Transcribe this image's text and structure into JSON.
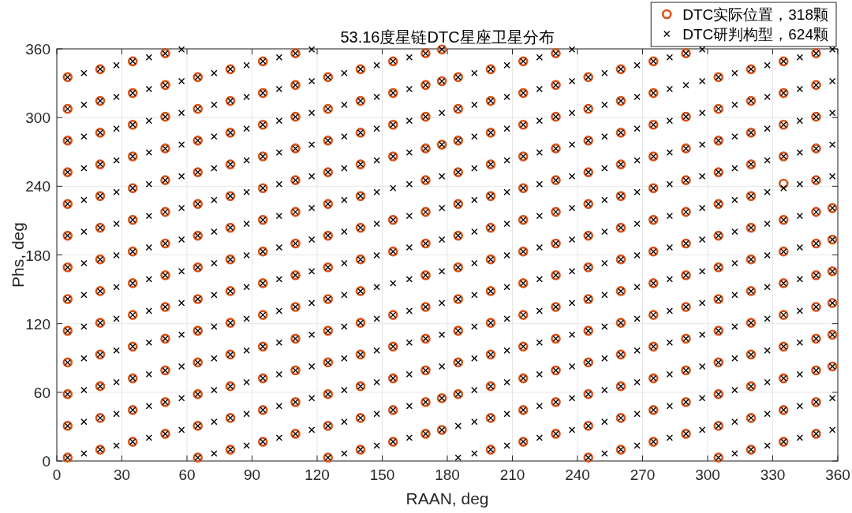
{
  "chart_data": {
    "type": "scatter",
    "title": "53.16度星链DTC星座卫星分布",
    "xlabel": "RAAN, deg",
    "ylabel": "Phs, deg",
    "xlim": [
      0,
      360
    ],
    "xticks": [
      0,
      30,
      60,
      90,
      120,
      150,
      180,
      210,
      240,
      270,
      300,
      330,
      360
    ],
    "ylim": [
      0,
      360
    ],
    "yticks": [
      0,
      60,
      120,
      180,
      240,
      300,
      360
    ],
    "grid": true,
    "legend": "top right",
    "series": [
      {
        "name": "DTC实际位置，318颗",
        "color": "#d95319",
        "marker": "circle",
        "x": [
          5,
          5,
          5,
          5,
          5,
          5,
          5,
          5,
          5,
          5,
          5,
          5,
          5,
          20,
          20,
          20,
          20,
          20,
          20,
          20,
          20,
          20,
          20,
          20,
          20,
          20,
          35,
          35,
          35,
          35,
          35,
          35,
          35,
          35,
          35,
          35,
          35,
          35,
          35,
          50,
          50,
          50,
          50,
          50,
          50,
          50,
          50,
          50,
          50,
          50,
          50,
          50,
          65,
          65,
          65,
          65,
          65,
          65,
          65,
          65,
          65,
          65,
          65,
          65,
          65,
          80,
          80,
          80,
          80,
          80,
          80,
          80,
          80,
          80,
          80,
          80,
          80,
          80,
          95,
          95,
          95,
          95,
          95,
          95,
          95,
          95,
          95,
          95,
          95,
          95,
          95,
          110,
          110,
          110,
          110,
          110,
          110,
          110,
          110,
          110,
          110,
          110,
          110,
          110,
          125,
          125,
          125,
          125,
          125,
          125,
          125,
          125,
          125,
          125,
          125,
          125,
          125,
          140,
          140,
          140,
          140,
          140,
          140,
          140,
          140,
          140,
          140,
          140,
          140,
          140,
          155,
          155,
          155,
          155,
          155,
          155,
          155,
          155,
          155,
          155,
          155,
          170,
          170,
          170,
          170,
          170,
          170,
          170,
          170,
          170,
          170,
          170,
          170,
          170,
          177.5,
          177.5,
          177.5,
          177.5,
          177.5,
          185,
          185,
          185,
          185,
          185,
          185,
          185,
          185,
          185,
          185,
          185,
          200,
          200,
          200,
          200,
          200,
          200,
          200,
          200,
          200,
          200,
          200,
          200,
          200,
          215,
          215,
          215,
          215,
          215,
          215,
          215,
          215,
          215,
          215,
          215,
          215,
          215,
          230,
          230,
          230,
          230,
          230,
          230,
          230,
          230,
          230,
          230,
          230,
          230,
          230,
          245,
          245,
          245,
          245,
          245,
          245,
          245,
          245,
          245,
          245,
          245,
          245,
          245,
          260,
          260,
          260,
          260,
          260,
          260,
          260,
          260,
          260,
          260,
          260,
          260,
          260,
          275,
          275,
          275,
          275,
          275,
          275,
          275,
          275,
          275,
          275,
          275,
          275,
          275,
          290,
          290,
          290,
          290,
          290,
          290,
          290,
          290,
          290,
          290,
          290,
          290,
          305,
          305,
          305,
          305,
          305,
          305,
          305,
          305,
          305,
          305,
          305,
          305,
          305,
          320,
          320,
          320,
          320,
          320,
          320,
          320,
          320,
          320,
          320,
          320,
          320,
          320,
          335,
          335,
          335,
          335,
          335,
          335,
          335,
          335,
          335,
          335,
          335,
          335,
          335,
          350,
          350,
          350,
          350,
          350,
          350,
          350,
          350,
          350,
          350,
          350,
          350,
          350,
          357.5,
          357.5,
          357.5,
          357.5,
          357.5,
          357.5
        ],
        "values": [
          3,
          30.7,
          58.4,
          86.1,
          113.8,
          141.5,
          169.2,
          196.8,
          224.5,
          252.2,
          279.9,
          307.6,
          335.3,
          9.9,
          37.6,
          65.3,
          93.0,
          120.7,
          148.4,
          176.1,
          203.7,
          231.4,
          259.1,
          286.8,
          314.5,
          342.2,
          16.8,
          44.5,
          72.2,
          99.9,
          127.6,
          155.3,
          183.0,
          210.6,
          238.3,
          266.0,
          293.7,
          321.4,
          349.1,
          23.8,
          51.5,
          79.2,
          106.9,
          134.6,
          162.3,
          190.0,
          217.6,
          245.3,
          273.0,
          300.7,
          328.4,
          356.1,
          3,
          30.7,
          58.4,
          86.1,
          113.8,
          141.5,
          169.2,
          196.8,
          224.5,
          252.2,
          279.9,
          307.6,
          335.3,
          9.9,
          37.6,
          65.3,
          93.0,
          120.7,
          148.4,
          176.1,
          203.7,
          231.4,
          259.1,
          286.8,
          314.5,
          342.2,
          16.8,
          44.5,
          72.2,
          99.9,
          127.6,
          155.3,
          183.0,
          210.6,
          238.3,
          266.0,
          293.7,
          321.4,
          349.1,
          23.8,
          51.5,
          79.2,
          106.9,
          134.6,
          162.3,
          190.0,
          217.6,
          245.3,
          273.0,
          300.7,
          328.4,
          356.1,
          3,
          30.7,
          58.4,
          86.1,
          113.8,
          141.5,
          169.2,
          196.8,
          224.5,
          252.2,
          279.9,
          307.6,
          335.3,
          9.9,
          37.6,
          65.3,
          93.0,
          120.7,
          148.4,
          176.1,
          203.7,
          231.4,
          259.1,
          286.8,
          314.5,
          342.2,
          16.8,
          44.5,
          72.2,
          99.9,
          127.6,
          183.0,
          210.6,
          266.0,
          293.7,
          321.4,
          349.1,
          23.8,
          51.5,
          79.2,
          106.9,
          134.6,
          162.3,
          190.0,
          217.6,
          245.3,
          273.0,
          300.7,
          328.4,
          356.1,
          27.2,
          54.9,
          276.4,
          331.8,
          359.5,
          58.4,
          86.1,
          113.8,
          141.5,
          169.2,
          196.8,
          224.5,
          252.2,
          279.9,
          307.6,
          335.3,
          9.9,
          37.6,
          65.3,
          93.0,
          120.7,
          148.4,
          176.1,
          203.7,
          231.4,
          259.1,
          286.8,
          314.5,
          342.2,
          16.8,
          44.5,
          72.2,
          99.9,
          127.6,
          155.3,
          183.0,
          210.6,
          238.3,
          266.0,
          293.7,
          321.4,
          349.1,
          23.8,
          51.5,
          79.2,
          106.9,
          134.6,
          162.3,
          190.0,
          217.6,
          245.3,
          273.0,
          300.7,
          328.4,
          356.1,
          3,
          30.7,
          58.4,
          86.1,
          113.8,
          141.5,
          169.2,
          196.8,
          224.5,
          252.2,
          279.9,
          307.6,
          335.3,
          9.9,
          37.6,
          65.3,
          93.0,
          120.7,
          148.4,
          176.1,
          203.7,
          231.4,
          259.1,
          286.8,
          314.5,
          342.2,
          16.8,
          44.5,
          72.2,
          99.9,
          127.6,
          155.3,
          183.0,
          210.6,
          238.3,
          266.0,
          293.7,
          321.4,
          349.1,
          23.8,
          51.5,
          79.2,
          106.9,
          134.6,
          162.3,
          190.0,
          217.6,
          245.3,
          273.0,
          300.7,
          356.1,
          3,
          30.7,
          58.4,
          86.1,
          113.8,
          141.5,
          169.2,
          196.8,
          224.5,
          252.2,
          279.9,
          307.6,
          335.3,
          9.9,
          37.6,
          65.3,
          93.0,
          120.7,
          148.4,
          176.1,
          203.7,
          231.4,
          259.1,
          286.8,
          314.5,
          342.2,
          16.8,
          44.5,
          72.2,
          99.9,
          127.6,
          155.3,
          183.0,
          210.6,
          242.3,
          266.0,
          293.7,
          321.4,
          349.1,
          23.8,
          51.5,
          79.2,
          106.9,
          134.6,
          162.3,
          190.0,
          217.6,
          245.3,
          273.0,
          300.7,
          328.4,
          356.1,
          82.6,
          110.3,
          138.0,
          165.7,
          193.4,
          221.0
        ]
      },
      {
        "name": "DTC研判构型，624颗",
        "color": "#000000",
        "marker": "cross",
        "x": [
          5,
          5,
          5,
          5,
          5,
          5,
          5,
          5,
          5,
          5,
          5,
          5,
          5,
          12.5,
          12.5,
          12.5,
          12.5,
          12.5,
          12.5,
          12.5,
          12.5,
          12.5,
          12.5,
          12.5,
          12.5,
          12.5,
          20,
          20,
          20,
          20,
          20,
          20,
          20,
          20,
          20,
          20,
          20,
          20,
          20,
          27.5,
          27.5,
          27.5,
          27.5,
          27.5,
          27.5,
          27.5,
          27.5,
          27.5,
          27.5,
          27.5,
          27.5,
          27.5,
          35,
          35,
          35,
          35,
          35,
          35,
          35,
          35,
          35,
          35,
          35,
          35,
          35,
          42.5,
          42.5,
          42.5,
          42.5,
          42.5,
          42.5,
          42.5,
          42.5,
          42.5,
          42.5,
          42.5,
          42.5,
          42.5,
          50,
          50,
          50,
          50,
          50,
          50,
          50,
          50,
          50,
          50,
          50,
          50,
          50,
          57.5,
          57.5,
          57.5,
          57.5,
          57.5,
          57.5,
          57.5,
          57.5,
          57.5,
          57.5,
          57.5,
          57.5,
          57.5,
          65,
          65,
          65,
          65,
          65,
          65,
          65,
          65,
          65,
          65,
          65,
          65,
          65,
          72.5,
          72.5,
          72.5,
          72.5,
          72.5,
          72.5,
          72.5,
          72.5,
          72.5,
          72.5,
          72.5,
          72.5,
          72.5,
          80,
          80,
          80,
          80,
          80,
          80,
          80,
          80,
          80,
          80,
          80,
          80,
          80,
          87.5,
          87.5,
          87.5,
          87.5,
          87.5,
          87.5,
          87.5,
          87.5,
          87.5,
          87.5,
          87.5,
          87.5,
          87.5,
          95,
          95,
          95,
          95,
          95,
          95,
          95,
          95,
          95,
          95,
          95,
          95,
          95,
          102.5,
          102.5,
          102.5,
          102.5,
          102.5,
          102.5,
          102.5,
          102.5,
          102.5,
          102.5,
          102.5,
          102.5,
          102.5,
          110,
          110,
          110,
          110,
          110,
          110,
          110,
          110,
          110,
          110,
          110,
          110,
          110,
          117.5,
          117.5,
          117.5,
          117.5,
          117.5,
          117.5,
          117.5,
          117.5,
          117.5,
          117.5,
          117.5,
          117.5,
          117.5,
          125,
          125,
          125,
          125,
          125,
          125,
          125,
          125,
          125,
          125,
          125,
          125,
          125,
          132.5,
          132.5,
          132.5,
          132.5,
          132.5,
          132.5,
          132.5,
          132.5,
          132.5,
          132.5,
          132.5,
          132.5,
          132.5,
          140,
          140,
          140,
          140,
          140,
          140,
          140,
          140,
          140,
          140,
          140,
          140,
          140,
          147.5,
          147.5,
          147.5,
          147.5,
          147.5,
          147.5,
          147.5,
          147.5,
          147.5,
          147.5,
          147.5,
          147.5,
          147.5,
          155,
          155,
          155,
          155,
          155,
          155,
          155,
          155,
          155,
          155,
          155,
          155,
          155,
          162.5,
          162.5,
          162.5,
          162.5,
          162.5,
          162.5,
          162.5,
          162.5,
          162.5,
          162.5,
          162.5,
          162.5,
          162.5,
          170,
          170,
          170,
          170,
          170,
          170,
          170,
          170,
          170,
          170,
          170,
          170,
          170,
          177.5,
          177.5,
          177.5,
          177.5,
          177.5,
          177.5,
          177.5,
          177.5,
          177.5,
          177.5,
          177.5,
          177.5,
          177.5,
          185,
          185,
          185,
          185,
          185,
          185,
          185,
          185,
          185,
          185,
          185,
          185,
          185,
          192.5,
          192.5,
          192.5,
          192.5,
          192.5,
          192.5,
          192.5,
          192.5,
          192.5,
          192.5,
          192.5,
          192.5,
          192.5,
          200,
          200,
          200,
          200,
          200,
          200,
          200,
          200,
          200,
          200,
          200,
          200,
          200,
          207.5,
          207.5,
          207.5,
          207.5,
          207.5,
          207.5,
          207.5,
          207.5,
          207.5,
          207.5,
          207.5,
          207.5,
          207.5,
          215,
          215,
          215,
          215,
          215,
          215,
          215,
          215,
          215,
          215,
          215,
          215,
          215,
          222.5,
          222.5,
          222.5,
          222.5,
          222.5,
          222.5,
          222.5,
          222.5,
          222.5,
          222.5,
          222.5,
          222.5,
          222.5,
          230,
          230,
          230,
          230,
          230,
          230,
          230,
          230,
          230,
          230,
          230,
          230,
          230,
          237.5,
          237.5,
          237.5,
          237.5,
          237.5,
          237.5,
          237.5,
          237.5,
          237.5,
          237.5,
          237.5,
          237.5,
          237.5,
          245,
          245,
          245,
          245,
          245,
          245,
          245,
          245,
          245,
          245,
          245,
          245,
          245,
          252.5,
          252.5,
          252.5,
          252.5,
          252.5,
          252.5,
          252.5,
          252.5,
          252.5,
          252.5,
          252.5,
          252.5,
          252.5,
          260,
          260,
          260,
          260,
          260,
          260,
          260,
          260,
          260,
          260,
          260,
          260,
          260,
          267.5,
          267.5,
          267.5,
          267.5,
          267.5,
          267.5,
          267.5,
          267.5,
          267.5,
          267.5,
          267.5,
          267.5,
          267.5,
          275,
          275,
          275,
          275,
          275,
          275,
          275,
          275,
          275,
          275,
          275,
          275,
          275,
          282.5,
          282.5,
          282.5,
          282.5,
          282.5,
          282.5,
          282.5,
          282.5,
          282.5,
          282.5,
          282.5,
          282.5,
          282.5,
          290,
          290,
          290,
          290,
          290,
          290,
          290,
          290,
          290,
          290,
          290,
          290,
          290,
          297.5,
          297.5,
          297.5,
          297.5,
          297.5,
          297.5,
          297.5,
          297.5,
          297.5,
          297.5,
          297.5,
          297.5,
          297.5,
          305,
          305,
          305,
          305,
          305,
          305,
          305,
          305,
          305,
          305,
          305,
          305,
          305,
          312.5,
          312.5,
          312.5,
          312.5,
          312.5,
          312.5,
          312.5,
          312.5,
          312.5,
          312.5,
          312.5,
          312.5,
          312.5,
          320,
          320,
          320,
          320,
          320,
          320,
          320,
          320,
          320,
          320,
          320,
          320,
          320,
          327.5,
          327.5,
          327.5,
          327.5,
          327.5,
          327.5,
          327.5,
          327.5,
          327.5,
          327.5,
          327.5,
          327.5,
          327.5,
          335,
          335,
          335,
          335,
          335,
          335,
          335,
          335,
          335,
          335,
          335,
          335,
          335,
          342.5,
          342.5,
          342.5,
          342.5,
          342.5,
          342.5,
          342.5,
          342.5,
          342.5,
          342.5,
          342.5,
          342.5,
          342.5,
          350,
          350,
          350,
          350,
          350,
          350,
          350,
          350,
          350,
          350,
          350,
          350,
          350,
          357.5,
          357.5,
          357.5,
          357.5,
          357.5,
          357.5,
          357.5,
          357.5,
          357.5,
          357.5,
          357.5,
          357.5,
          357.5
        ],
        "values": [
          3,
          30.7,
          58.4,
          86.1,
          113.8,
          141.5,
          169.2,
          196.8,
          224.5,
          252.2,
          279.9,
          307.6,
          335.3,
          6.5,
          34.2,
          61.9,
          89.6,
          117.3,
          145.0,
          172.7,
          200.3,
          228.0,
          255.7,
          283.4,
          311.1,
          338.8,
          9.9,
          37.6,
          65.3,
          93.0,
          120.7,
          148.4,
          176.1,
          203.7,
          231.4,
          259.1,
          286.8,
          314.5,
          342.2,
          13.4,
          41.1,
          68.8,
          96.5,
          124.2,
          151.9,
          179.6,
          207.2,
          234.9,
          262.6,
          290.3,
          318.0,
          345.7,
          16.8,
          44.5,
          72.2,
          99.9,
          127.6,
          155.3,
          183.0,
          210.6,
          238.3,
          266.0,
          293.7,
          321.4,
          349.1,
          20.3,
          48.0,
          75.7,
          103.4,
          131.1,
          158.8,
          186.5,
          214.1,
          241.8,
          269.5,
          297.2,
          324.9,
          352.6,
          23.8,
          51.5,
          79.2,
          106.9,
          134.6,
          162.3,
          190.0,
          217.6,
          245.3,
          273.0,
          300.7,
          328.4,
          356.1,
          27.2,
          54.9,
          82.6,
          110.3,
          138.0,
          165.7,
          193.4,
          221.0,
          248.7,
          276.4,
          304.1,
          331.8,
          359.5,
          3,
          30.7,
          58.4,
          86.1,
          113.8,
          141.5,
          169.2,
          196.8,
          224.5,
          252.2,
          279.9,
          307.6,
          335.3,
          6.5,
          34.2,
          61.9,
          89.6,
          117.3,
          145.0,
          172.7,
          200.3,
          228.0,
          255.7,
          283.4,
          311.1,
          338.8,
          9.9,
          37.6,
          65.3,
          93.0,
          120.7,
          148.4,
          176.1,
          203.7,
          231.4,
          259.1,
          286.8,
          314.5,
          342.2,
          13.4,
          41.1,
          68.8,
          96.5,
          124.2,
          151.9,
          179.6,
          207.2,
          234.9,
          262.6,
          290.3,
          318.0,
          345.7,
          16.8,
          44.5,
          72.2,
          99.9,
          127.6,
          155.3,
          183.0,
          210.6,
          238.3,
          266.0,
          293.7,
          321.4,
          349.1,
          20.3,
          48.0,
          75.7,
          103.4,
          131.1,
          158.8,
          186.5,
          214.1,
          241.8,
          269.5,
          297.2,
          324.9,
          352.6,
          23.8,
          51.5,
          79.2,
          106.9,
          134.6,
          162.3,
          190.0,
          217.6,
          245.3,
          273.0,
          300.7,
          328.4,
          356.1,
          27.2,
          54.9,
          82.6,
          110.3,
          138.0,
          165.7,
          193.4,
          221.0,
          248.7,
          276.4,
          304.1,
          331.8,
          359.5,
          3,
          30.7,
          58.4,
          86.1,
          113.8,
          141.5,
          169.2,
          196.8,
          224.5,
          252.2,
          279.9,
          307.6,
          335.3,
          6.5,
          34.2,
          61.9,
          89.6,
          117.3,
          145.0,
          172.7,
          200.3,
          228.0,
          255.7,
          283.4,
          311.1,
          338.8,
          9.9,
          37.6,
          65.3,
          93.0,
          120.7,
          148.4,
          176.1,
          203.7,
          231.4,
          259.1,
          286.8,
          314.5,
          342.2,
          13.4,
          41.1,
          68.8,
          96.5,
          124.2,
          151.9,
          179.6,
          207.2,
          234.9,
          262.6,
          290.3,
          318.0,
          345.7,
          16.8,
          44.5,
          72.2,
          99.9,
          127.6,
          155.3,
          183.0,
          210.6,
          238.3,
          266.0,
          293.7,
          321.4,
          349.1,
          20.3,
          48.0,
          75.7,
          103.4,
          131.1,
          158.8,
          186.5,
          214.1,
          241.8,
          269.5,
          297.2,
          324.9,
          352.6,
          23.8,
          51.5,
          79.2,
          106.9,
          134.6,
          162.3,
          190.0,
          217.6,
          245.3,
          273.0,
          300.7,
          328.4,
          356.1,
          27.2,
          54.9,
          82.6,
          110.3,
          138.0,
          165.7,
          193.4,
          221.0,
          248.7,
          276.4,
          304.1,
          331.8,
          359.5,
          3,
          30.7,
          58.4,
          86.1,
          113.8,
          141.5,
          169.2,
          196.8,
          224.5,
          252.2,
          279.9,
          307.6,
          335.3,
          6.5,
          34.2,
          61.9,
          89.6,
          117.3,
          145.0,
          172.7,
          200.3,
          228.0,
          255.7,
          283.4,
          311.1,
          338.8,
          9.9,
          37.6,
          65.3,
          93.0,
          120.7,
          148.4,
          176.1,
          203.7,
          231.4,
          259.1,
          286.8,
          314.5,
          342.2,
          13.4,
          41.1,
          68.8,
          96.5,
          124.2,
          151.9,
          179.6,
          207.2,
          234.9,
          262.6,
          290.3,
          318.0,
          345.7,
          16.8,
          44.5,
          72.2,
          99.9,
          127.6,
          155.3,
          183.0,
          210.6,
          238.3,
          266.0,
          293.7,
          321.4,
          349.1,
          20.3,
          48.0,
          75.7,
          103.4,
          131.1,
          158.8,
          186.5,
          214.1,
          241.8,
          269.5,
          297.2,
          324.9,
          352.6,
          23.8,
          51.5,
          79.2,
          106.9,
          134.6,
          162.3,
          190.0,
          217.6,
          245.3,
          273.0,
          300.7,
          328.4,
          356.1,
          27.2,
          54.9,
          82.6,
          110.3,
          138.0,
          165.7,
          193.4,
          221.0,
          248.7,
          276.4,
          304.1,
          331.8,
          359.5,
          3,
          30.7,
          58.4,
          86.1,
          113.8,
          141.5,
          169.2,
          196.8,
          224.5,
          252.2,
          279.9,
          307.6,
          335.3,
          6.5,
          34.2,
          61.9,
          89.6,
          117.3,
          145.0,
          172.7,
          200.3,
          228.0,
          255.7,
          283.4,
          311.1,
          338.8,
          9.9,
          37.6,
          65.3,
          93.0,
          120.7,
          148.4,
          176.1,
          203.7,
          231.4,
          259.1,
          286.8,
          314.5,
          342.2,
          13.4,
          41.1,
          68.8,
          96.5,
          124.2,
          151.9,
          179.6,
          207.2,
          234.9,
          262.6,
          290.3,
          318.0,
          345.7,
          16.8,
          44.5,
          72.2,
          99.9,
          127.6,
          155.3,
          183.0,
          210.6,
          238.3,
          266.0,
          293.7,
          321.4,
          349.1,
          20.3,
          48.0,
          75.7,
          103.4,
          131.1,
          158.8,
          186.5,
          214.1,
          241.8,
          269.5,
          297.2,
          324.9,
          352.6,
          23.8,
          51.5,
          79.2,
          106.9,
          134.6,
          162.3,
          190.0,
          217.6,
          245.3,
          273.0,
          300.7,
          328.4,
          356.1,
          27.2,
          54.9,
          82.6,
          110.3,
          138.0,
          165.7,
          193.4,
          221.0,
          248.7,
          276.4,
          304.1,
          331.8,
          359.5,
          3,
          30.7,
          58.4,
          86.1,
          113.8,
          141.5,
          169.2,
          196.8,
          224.5,
          252.2,
          279.9,
          307.6,
          335.3,
          6.5,
          34.2,
          61.9,
          89.6,
          117.3,
          145.0,
          172.7,
          200.3,
          228.0,
          255.7,
          283.4,
          311.1,
          338.8,
          9.9,
          37.6,
          65.3,
          93.0,
          120.7,
          148.4,
          176.1,
          203.7,
          231.4,
          259.1,
          286.8,
          314.5,
          342.2,
          13.4,
          41.1,
          68.8,
          96.5,
          124.2,
          151.9,
          179.6,
          207.2,
          234.9,
          262.6,
          290.3,
          318.0,
          345.7,
          16.8,
          44.5,
          72.2,
          99.9,
          127.6,
          155.3,
          183.0,
          210.6,
          238.3,
          266.0,
          293.7,
          321.4,
          349.1,
          20.3,
          48.0,
          75.7,
          103.4,
          131.1,
          158.8,
          186.5,
          214.1,
          241.8,
          269.5,
          297.2,
          324.9,
          352.6,
          23.8,
          51.5,
          79.2,
          106.9,
          134.6,
          162.3,
          190.0,
          217.6,
          245.3,
          273.0,
          300.7,
          328.4,
          356.1,
          27.2,
          54.9,
          82.6,
          110.3,
          138.0,
          165.7,
          193.4,
          221.0,
          248.7,
          276.4,
          304.1,
          331.8,
          359.5
        ]
      }
    ]
  }
}
